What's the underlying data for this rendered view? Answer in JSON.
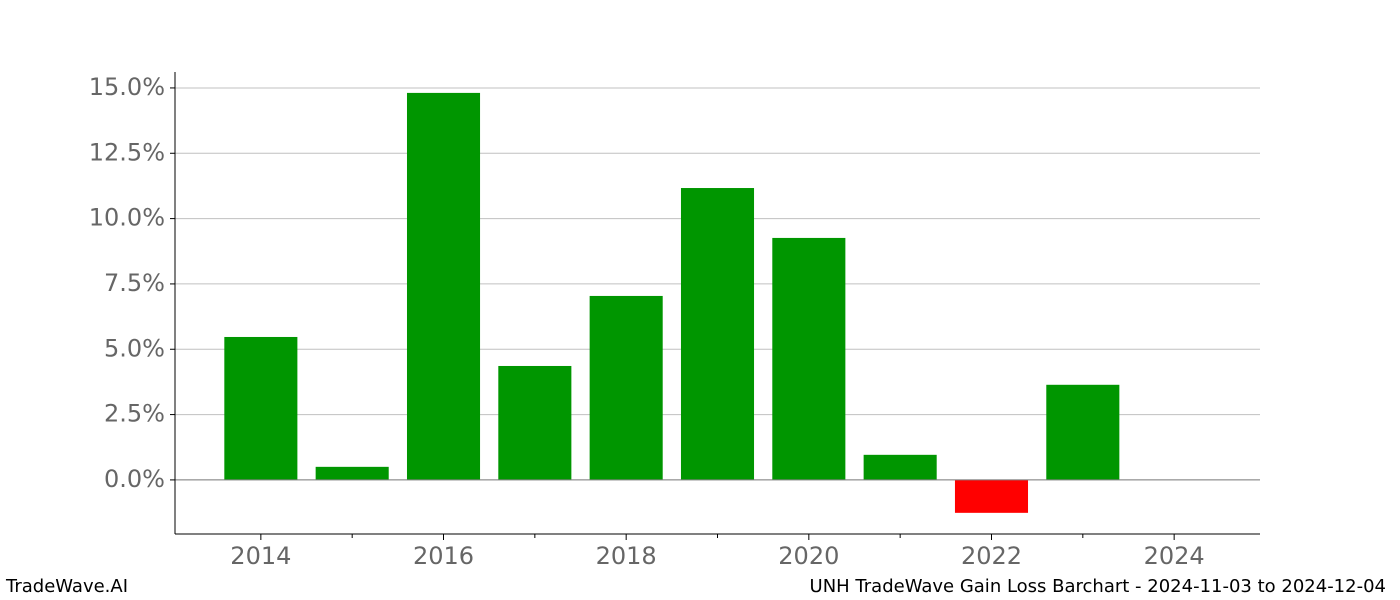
{
  "chart_data": {
    "type": "bar",
    "x": [
      2014,
      2015,
      2016,
      2017,
      2018,
      2019,
      2020,
      2021,
      2022,
      2023,
      2024
    ],
    "values": [
      5.47,
      0.5,
      14.81,
      4.36,
      7.04,
      11.17,
      9.26,
      0.96,
      -1.26,
      3.64,
      0
    ],
    "colors": [
      "#009600",
      "#009600",
      "#009600",
      "#009600",
      "#009600",
      "#009600",
      "#009600",
      "#009600",
      "#ff0000",
      "#009600",
      "#009600"
    ],
    "bar_width": 0.8,
    "xlim": [
      2013.06,
      2024.94
    ],
    "xticks": [
      2014,
      2016,
      2018,
      2020,
      2022,
      2024
    ],
    "xminorticks": [
      2015,
      2017,
      2019,
      2021,
      2023
    ],
    "ylim": [
      -2.07,
      15.61
    ],
    "yticks": [
      {
        "value": 0,
        "label": "0.0%"
      },
      {
        "value": 2.5,
        "label": "2.5%"
      },
      {
        "value": 5,
        "label": "5.0%"
      },
      {
        "value": 7.5,
        "label": "7.5%"
      },
      {
        "value": 10,
        "label": "10.0%"
      },
      {
        "value": 12.5,
        "label": "12.5%"
      },
      {
        "value": 15,
        "label": "15.0%"
      }
    ],
    "grid": true,
    "zero_line": true,
    "watermark": "TradeWave.AI",
    "caption": "UNH TradeWave Gain Loss Barchart - 2024-11-03 to 2024-12-04"
  }
}
